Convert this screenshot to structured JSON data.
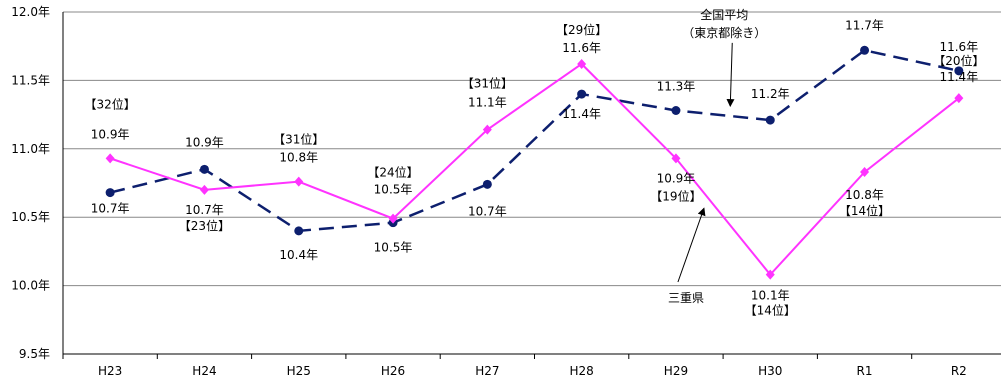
{
  "chart_data": {
    "type": "line",
    "title": "",
    "xlabel": "",
    "ylabel": "",
    "categories": [
      "H23",
      "H24",
      "H25",
      "H26",
      "H27",
      "H28",
      "H29",
      "H30",
      "R1",
      "R2"
    ],
    "ylim": [
      9.5,
      12.0
    ],
    "y_ticks": [
      "9.5年",
      "10.0年",
      "10.5年",
      "11.0年",
      "11.5年",
      "12.0年"
    ],
    "grid": true,
    "series": [
      {
        "name": "三重県",
        "color": "#FF33FF",
        "line_style": "solid",
        "marker": "diamond",
        "values": [
          10.93,
          10.7,
          10.76,
          10.49,
          11.14,
          11.62,
          10.93,
          10.08,
          10.83,
          11.37
        ],
        "value_labels": [
          "10.9年",
          "10.7年",
          "10.8年",
          "10.5年",
          "11.1年",
          "11.6年",
          "10.9年",
          "10.1年",
          "10.8年",
          "11.4年"
        ],
        "rank_labels": [
          "【32位】",
          "【23位】",
          "【31位】",
          "【24位】",
          "【31位】",
          "【29位】",
          "【19位】",
          "【14位】",
          "【14位】",
          "【20位】"
        ]
      },
      {
        "name": "全国平均（東京都除き）",
        "name_lines": [
          "全国平均",
          "（東京都除き）"
        ],
        "color": "#0D1F6E",
        "line_style": "dashed",
        "marker": "circle",
        "values": [
          10.68,
          10.85,
          10.4,
          10.46,
          10.74,
          11.4,
          11.28,
          11.21,
          11.72,
          11.57
        ],
        "value_labels": [
          "10.7年",
          "10.9年",
          "10.4年",
          "10.5年",
          "10.7年",
          "11.4年",
          "11.3年",
          "11.2年",
          "11.7年",
          "11.6年"
        ]
      }
    ]
  }
}
